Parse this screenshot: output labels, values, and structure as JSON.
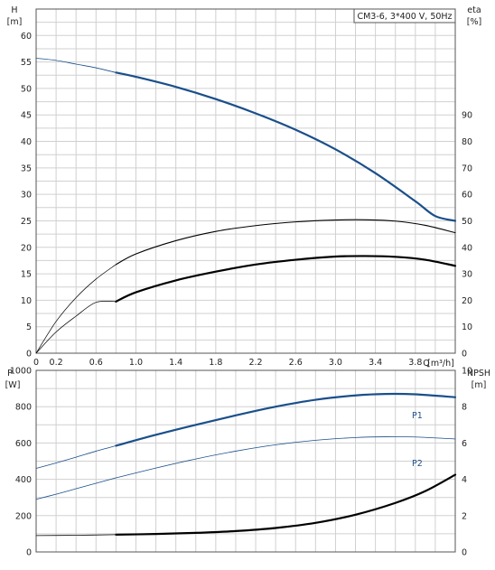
{
  "chart_data": [
    {
      "type": "line",
      "title": "CM3-6, 3*400 V, 50Hz",
      "xlabel": "Q [m³/h]",
      "ylabel": "H [m]",
      "ylabel_parts": [
        "H",
        "[m]"
      ],
      "y2label_parts": [
        "eta",
        "[%]"
      ],
      "xlabel_parts": [
        "Q",
        "[m³/h]"
      ],
      "xlim": [
        0,
        4.2
      ],
      "ylim": [
        0,
        65
      ],
      "y2lim": [
        0,
        130
      ],
      "x_ticks": [
        "0",
        "0.2",
        "0.6",
        "1.0",
        "1.4",
        "1.8",
        "2.2",
        "2.6",
        "3.0",
        "3.4",
        "3.8"
      ],
      "x_tick_values": [
        0,
        0.2,
        0.6,
        1.0,
        1.4,
        1.8,
        2.2,
        2.6,
        3.0,
        3.4,
        3.8
      ],
      "y_ticks": [
        0,
        5,
        10,
        15,
        20,
        25,
        30,
        35,
        40,
        45,
        50,
        55,
        60
      ],
      "y2_ticks": [
        0,
        10,
        20,
        30,
        40,
        50,
        60,
        70,
        80,
        90
      ],
      "grid": true,
      "series": [
        {
          "axis": "left",
          "color": "#1a4f8a",
          "width_thin": 0.8,
          "width_thick": 2.2,
          "x": [
            0,
            0.2,
            0.4,
            0.6,
            0.8,
            1.0,
            1.4,
            1.8,
            2.2,
            2.6,
            3.0,
            3.4,
            3.8,
            4.0,
            4.2
          ],
          "y": [
            55.7,
            55.3,
            54.6,
            53.9,
            53.0,
            52.2,
            50.3,
            48.0,
            45.3,
            42.2,
            38.5,
            34.0,
            28.7,
            25.9,
            25.0
          ],
          "thin_until": 0.8
        },
        {
          "axis": "right",
          "color": "#000000",
          "width_thin": 0.7,
          "width_thick": 1.1,
          "x": [
            0,
            0.2,
            0.4,
            0.6,
            0.8,
            1.0,
            1.4,
            1.8,
            2.2,
            2.6,
            3.0,
            3.3,
            3.6,
            3.9,
            4.2
          ],
          "y": [
            0,
            12.0,
            21.0,
            28.0,
            33.5,
            37.5,
            42.5,
            46.0,
            48.2,
            49.6,
            50.3,
            50.4,
            49.9,
            48.3,
            45.5
          ],
          "thin_until": 0.8
        },
        {
          "axis": "right",
          "color": "#000000",
          "width_thin": 0.7,
          "width_thick": 2.2,
          "x": [
            0,
            0.2,
            0.4,
            0.6,
            0.8,
            1.0,
            1.4,
            1.8,
            2.2,
            2.6,
            3.0,
            3.3,
            3.6,
            3.9,
            4.2
          ],
          "y": [
            0,
            8.0,
            14.0,
            19.2,
            19.5,
            23.0,
            27.5,
            30.8,
            33.5,
            35.3,
            36.5,
            36.7,
            36.4,
            35.3,
            33.0
          ],
          "thin_until": 0.8
        }
      ]
    },
    {
      "type": "line",
      "xlabel": "",
      "ylabel": "P [W]",
      "ylabel_parts": [
        "P",
        "[W]"
      ],
      "y2label_parts": [
        "NPSH",
        "[m]"
      ],
      "xlim": [
        0,
        4.2
      ],
      "ylim": [
        0,
        1000
      ],
      "y2lim": [
        0,
        10
      ],
      "y_ticks": [
        0,
        200,
        400,
        600,
        800,
        1000
      ],
      "y2_ticks": [
        0,
        2,
        4,
        6,
        8,
        10
      ],
      "grid": true,
      "series": [
        {
          "name": "P1",
          "axis": "left",
          "color": "#1a4f8a",
          "width_thin": 0.8,
          "width_thick": 2.2,
          "x": [
            0,
            0.2,
            0.4,
            0.6,
            0.8,
            1.2,
            1.6,
            2.0,
            2.4,
            2.8,
            3.2,
            3.5,
            3.8,
            4.2
          ],
          "y": [
            460,
            490,
            522,
            555,
            585,
            645,
            700,
            752,
            800,
            838,
            862,
            870,
            868,
            852
          ],
          "thin_until": 0.8
        },
        {
          "name": "P2",
          "axis": "left",
          "color": "#1a4f8a",
          "width_thin": 0.8,
          "width_thick": 0.8,
          "x": [
            0,
            0.2,
            0.4,
            0.6,
            0.8,
            1.2,
            1.6,
            2.0,
            2.4,
            2.8,
            3.2,
            3.5,
            3.8,
            4.2
          ],
          "y": [
            290,
            318,
            348,
            378,
            408,
            462,
            512,
            555,
            590,
            615,
            630,
            634,
            633,
            622
          ],
          "thin_until": 0.8
        },
        {
          "axis": "right",
          "color": "#000000",
          "width_thin": 0.8,
          "width_thick": 2.2,
          "x": [
            0,
            0.4,
            0.8,
            1.2,
            1.6,
            2.0,
            2.4,
            2.8,
            3.2,
            3.6,
            3.9,
            4.2
          ],
          "y": [
            0.9,
            0.92,
            0.95,
            0.99,
            1.05,
            1.15,
            1.32,
            1.6,
            2.05,
            2.7,
            3.35,
            4.25
          ],
          "thin_until": 0.8
        }
      ]
    }
  ]
}
